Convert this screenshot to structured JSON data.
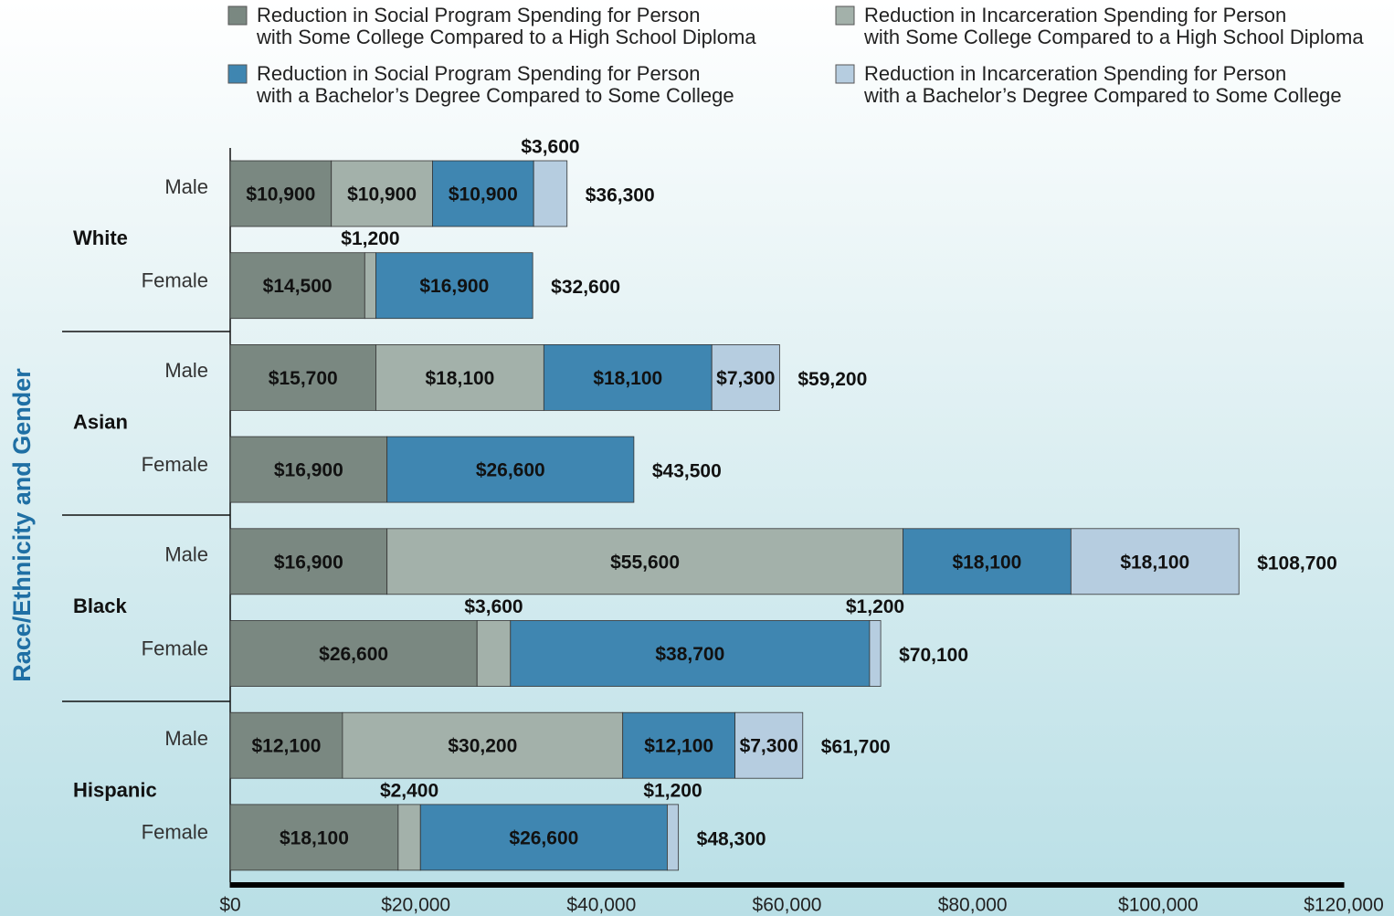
{
  "chart_data": {
    "type": "stacked-barh",
    "y_label": "Race/Ethnicity and Gender",
    "groups": [
      "White",
      "Asian",
      "Black",
      "Hispanic"
    ],
    "categories": [
      "Male",
      "Female",
      "Male",
      "Female",
      "Male",
      "Female",
      "Male",
      "Female"
    ],
    "series": [
      {
        "name": "Reduction in Social Program Spending for Person with Some College Compared to a High School Diploma",
        "color": "#7a8881",
        "values": [
          10900,
          14500,
          15700,
          16900,
          16900,
          26600,
          12100,
          18100
        ],
        "value_labels": [
          "$10,900",
          "$14,500",
          "$15,700",
          "$16,900",
          "$16,900",
          "$26,600",
          "$12,100",
          "$18,100"
        ]
      },
      {
        "name": "Reduction in Incarceration Spending for Person with Some College Compared to a High School Diploma",
        "color": "#a3b1aa",
        "values": [
          10900,
          1200,
          18100,
          0,
          55600,
          3600,
          30200,
          2400
        ],
        "value_labels": [
          "$10,900",
          "$1,200",
          "$18,100",
          null,
          "$55,600",
          "$3,600",
          "$30,200",
          "$2,400"
        ]
      },
      {
        "name": "Reduction in Social Program Spending for Person with a Bachelor’s Degree Compared to Some College",
        "color": "#3f86b1",
        "values": [
          10900,
          16900,
          18100,
          26600,
          18100,
          38700,
          12100,
          26600
        ],
        "value_labels": [
          "$10,900",
          "$16,900",
          "$18,100",
          "$26,600",
          "$18,100",
          "$38,700",
          "$12,100",
          "$26,600"
        ]
      },
      {
        "name": "Reduction in Incarceration Spending for Person with a Bachelor’s Degree Compared to Some College",
        "color": "#b6cde0",
        "values": [
          3600,
          0,
          7300,
          0,
          18100,
          1200,
          7300,
          1200
        ],
        "value_labels": [
          "$3,600",
          null,
          "$7,300",
          null,
          "$18,100",
          "$1,200",
          "$7,300",
          "$1,200"
        ]
      }
    ],
    "totals": [
      36300,
      32600,
      59200,
      43500,
      108700,
      70100,
      61700,
      48300
    ],
    "totals_labels": [
      "$36,300",
      "$32,600",
      "$59,200",
      "$43,500",
      "$108,700",
      "$70,100",
      "$61,700",
      "$48,300"
    ],
    "xlim": [
      0,
      120000
    ],
    "xticks": [
      {
        "value": 0,
        "label": "$0"
      },
      {
        "value": 20000,
        "label": "$20,000"
      },
      {
        "value": 40000,
        "label": "$40,000"
      },
      {
        "value": 60000,
        "label": "$60,000"
      },
      {
        "value": 80000,
        "label": "$80,000"
      },
      {
        "value": 100000,
        "label": "$100,000"
      },
      {
        "value": 120000,
        "label": "$120,000"
      }
    ]
  }
}
